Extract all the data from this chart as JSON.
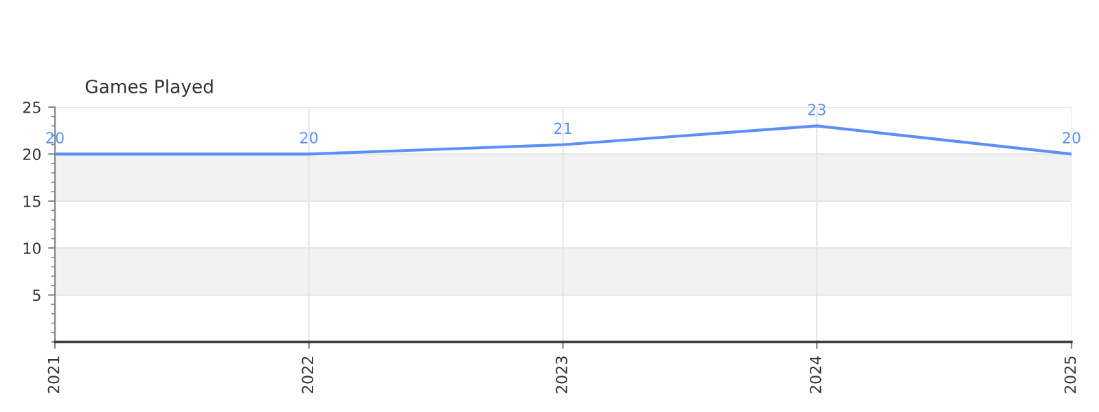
{
  "chart_data": {
    "type": "line",
    "title": "Games Played",
    "x": [
      "2021",
      "2022",
      "2023",
      "2024",
      "2025"
    ],
    "series": [
      {
        "color": "#5b8ff9",
        "values": [
          20,
          20,
          21,
          23,
          20
        ]
      }
    ],
    "xlim": [
      "2021",
      "2025"
    ],
    "xticks": [
      "2021",
      "2022",
      "2023",
      "2024",
      "2025"
    ],
    "ylim": [
      0,
      25
    ],
    "yticks": [
      5,
      10,
      15,
      20,
      25
    ],
    "bands": [
      {
        "axis": "y",
        "from": 5,
        "to": 10,
        "color": "#f2f2f2"
      },
      {
        "axis": "y",
        "from": 15,
        "to": 20,
        "color": "#f2f2f2"
      }
    ],
    "grid": true,
    "data_labels": true,
    "marker": "none",
    "line_style": "solid",
    "legend": false
  }
}
